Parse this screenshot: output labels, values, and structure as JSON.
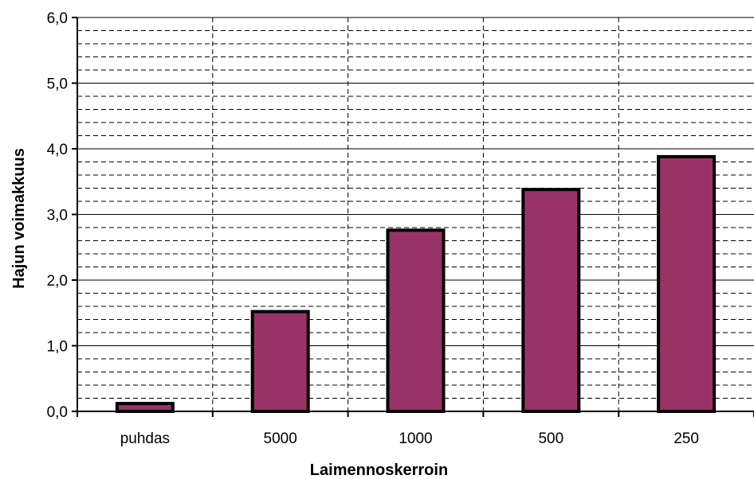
{
  "chart_data": {
    "type": "bar",
    "categories": [
      "puhdas",
      "5000",
      "1000",
      "500",
      "250"
    ],
    "values": [
      0.12,
      1.52,
      2.76,
      3.38,
      3.88
    ],
    "xlabel": "Laimennoskerroin",
    "ylabel": "Hajun voimakkuus",
    "ylim": [
      0,
      6
    ],
    "yticks": [
      "0,0",
      "1,0",
      "2,0",
      "3,0",
      "4,0",
      "5,0",
      "6,0"
    ],
    "ytick_values": [
      0,
      1,
      2,
      3,
      4,
      5,
      6
    ],
    "minor_grid_step": 0.2,
    "grid": true,
    "bar_color": "#993366",
    "bar_edge_color": "#000000"
  }
}
